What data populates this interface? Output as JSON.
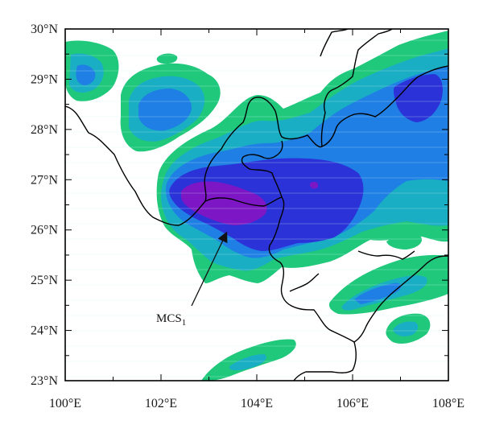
{
  "map": {
    "x_ticks": [
      "100°E",
      "102°E",
      "104°E",
      "106°E",
      "108°E"
    ],
    "y_ticks": [
      "23°N",
      "24°N",
      "25°N",
      "26°N",
      "27°N",
      "28°N",
      "29°N",
      "30°N"
    ],
    "annotation": {
      "text": "MCS",
      "subscript": "1"
    },
    "colors": {
      "level1": "#20c87c",
      "level2": "#19aec4",
      "level3": "#1f7fe4",
      "level4": "#2b33d8",
      "level5": "#7d16c4",
      "boundary": "#000000",
      "frame": "#000000",
      "gridline": "#cfeff0"
    }
  },
  "chart_data": {
    "type": "map",
    "xlim": [
      100,
      108
    ],
    "ylim": [
      23,
      30
    ],
    "x_ticks": [
      100,
      102,
      104,
      106,
      108
    ],
    "y_ticks": [
      23,
      24,
      25,
      26,
      27,
      28,
      29,
      30
    ],
    "annotation": {
      "label": "MCS1",
      "arrow_target_lon": 103.2,
      "arrow_target_lat": 25.95
    }
  }
}
